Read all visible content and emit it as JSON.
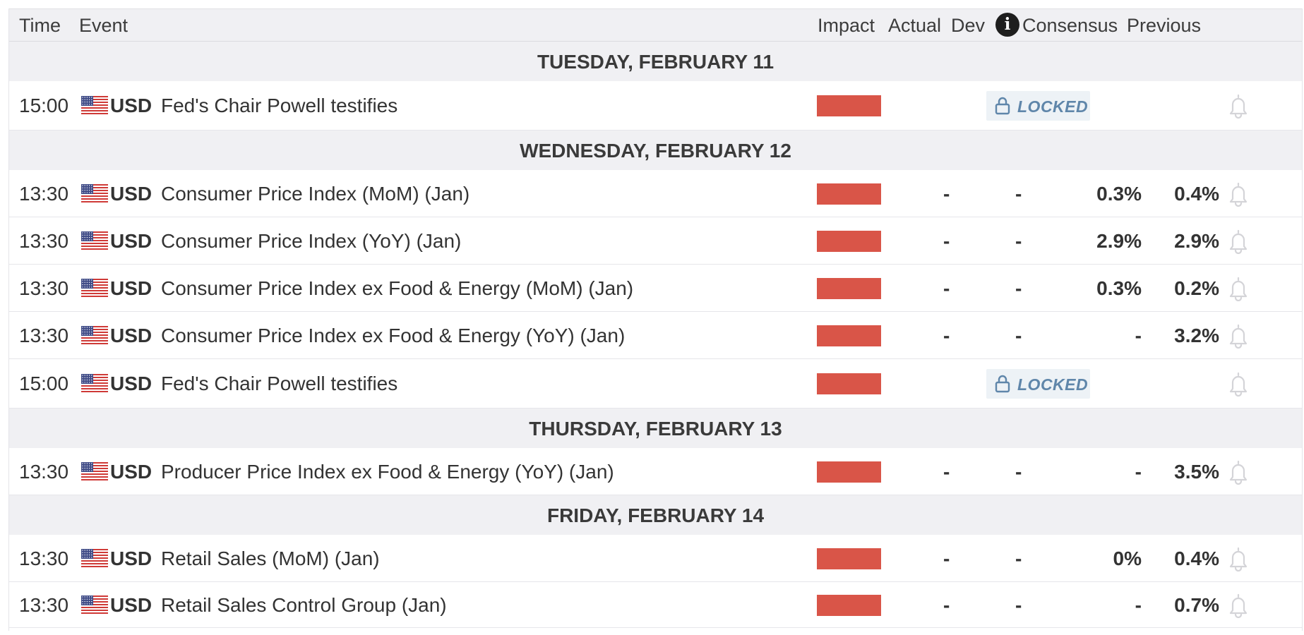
{
  "header": {
    "time": "Time",
    "event": "Event",
    "impact": "Impact",
    "actual": "Actual",
    "dev": "Dev",
    "info_icon": "i",
    "consensus": "Consensus",
    "previous": "Previous"
  },
  "colors": {
    "impact_high": "#d95548",
    "locked_text": "#5f86aa",
    "day_bg": "#f0f0f3"
  },
  "icons": {
    "flag": "us-flag-icon",
    "lock": "lock-icon",
    "bell": "bell-icon",
    "info": "info-icon"
  },
  "days": [
    {
      "label": "TUESDAY, FEBRUARY 11",
      "events": [
        {
          "time": "15:00",
          "currency": "USD",
          "name": "Fed's Chair Powell testifies",
          "locked": true,
          "locked_label": "LOCKED"
        }
      ]
    },
    {
      "label": "WEDNESDAY, FEBRUARY 12",
      "events": [
        {
          "time": "13:30",
          "currency": "USD",
          "name": "Consumer Price Index (MoM) (Jan)",
          "actual": "-",
          "dev": "-",
          "consensus": "0.3%",
          "previous": "0.4%"
        },
        {
          "time": "13:30",
          "currency": "USD",
          "name": "Consumer Price Index (YoY) (Jan)",
          "actual": "-",
          "dev": "-",
          "consensus": "2.9%",
          "previous": "2.9%"
        },
        {
          "time": "13:30",
          "currency": "USD",
          "name": "Consumer Price Index ex Food & Energy (MoM) (Jan)",
          "actual": "-",
          "dev": "-",
          "consensus": "0.3%",
          "previous": "0.2%"
        },
        {
          "time": "13:30",
          "currency": "USD",
          "name": "Consumer Price Index ex Food & Energy (YoY) (Jan)",
          "actual": "-",
          "dev": "-",
          "consensus": "-",
          "previous": "3.2%"
        },
        {
          "time": "15:00",
          "currency": "USD",
          "name": "Fed's Chair Powell testifies",
          "locked": true,
          "locked_label": "LOCKED"
        }
      ]
    },
    {
      "label": "THURSDAY, FEBRUARY 13",
      "events": [
        {
          "time": "13:30",
          "currency": "USD",
          "name": "Producer Price Index ex Food & Energy (YoY) (Jan)",
          "actual": "-",
          "dev": "-",
          "consensus": "-",
          "previous": "3.5%"
        }
      ]
    },
    {
      "label": "FRIDAY, FEBRUARY 14",
      "events": [
        {
          "time": "13:30",
          "currency": "USD",
          "name": "Retail Sales (MoM) (Jan)",
          "actual": "-",
          "dev": "-",
          "consensus": "0%",
          "previous": "0.4%"
        },
        {
          "time": "13:30",
          "currency": "USD",
          "name": "Retail Sales Control Group (Jan)",
          "actual": "-",
          "dev": "-",
          "consensus": "-",
          "previous": "0.7%"
        }
      ]
    }
  ]
}
